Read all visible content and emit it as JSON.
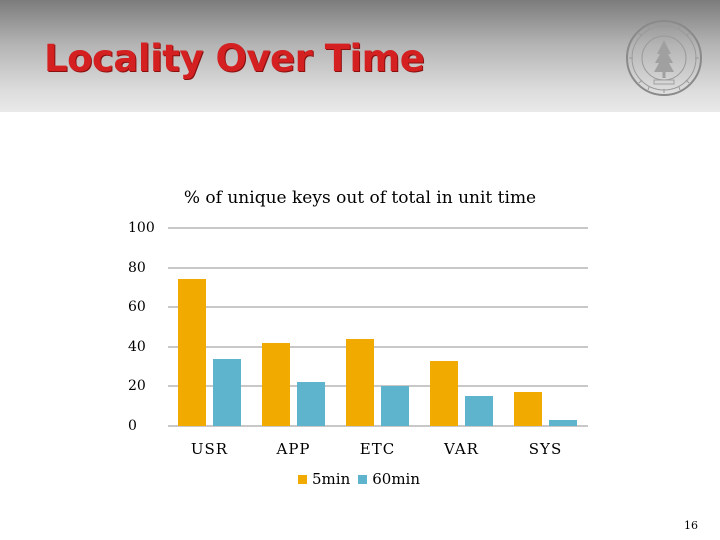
{
  "slide": {
    "title": "Locality Over Time",
    "page_number": "16"
  },
  "colors": {
    "title": "#d42020",
    "series_5min": "#f0aa00",
    "series_60min": "#5eb4cc",
    "grid": "#c8c8c8"
  },
  "chart_data": {
    "type": "bar",
    "title": "% of unique keys out of total in unit time",
    "xlabel": "",
    "ylabel": "",
    "ylim": [
      0,
      100
    ],
    "yticks": [
      "100",
      "80",
      "60",
      "40",
      "20",
      "0"
    ],
    "ytick_values": [
      100,
      80,
      60,
      40,
      20,
      0
    ],
    "categories": [
      "USR",
      "APP",
      "ETC",
      "VAR",
      "SYS"
    ],
    "series": [
      {
        "name": "5min",
        "values": [
          74,
          42,
          44,
          33,
          17
        ]
      },
      {
        "name": "60min",
        "values": [
          34,
          22,
          20,
          15,
          3
        ]
      }
    ],
    "grid": true,
    "legend_position": "bottom"
  }
}
